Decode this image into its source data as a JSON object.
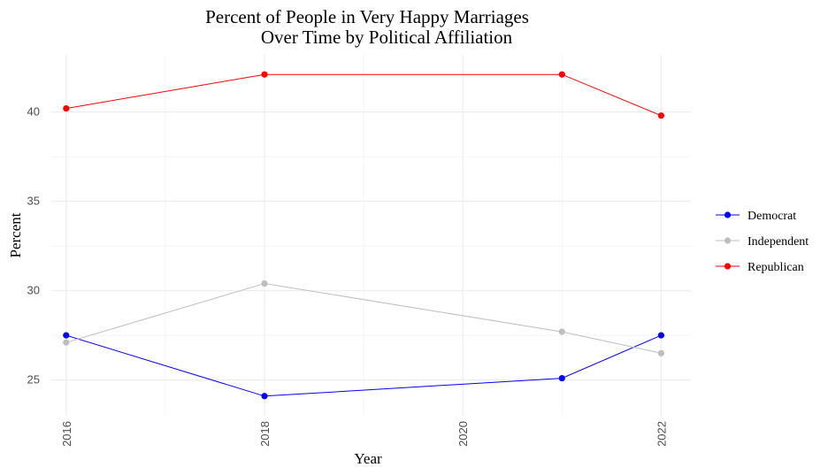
{
  "chart_data": {
    "type": "line",
    "title_lines": [
      "Percent of People in Very Happy Marriages",
      "Over Time by Political Affiliation"
    ],
    "xlabel": "Year",
    "ylabel": "Percent",
    "xlim": [
      2015.85,
      2022.3
    ],
    "ylim": [
      23.0,
      43.2
    ],
    "x_ticks": [
      2016,
      2018,
      2020,
      2022
    ],
    "y_ticks": [
      25,
      30,
      35,
      40
    ],
    "grid": true,
    "legend_position": "right",
    "series": [
      {
        "name": "Democrat",
        "color": "#0000ff",
        "x": [
          2016,
          2018,
          2021,
          2022
        ],
        "y": [
          27.5,
          24.1,
          25.1,
          27.5
        ]
      },
      {
        "name": "Independent",
        "color": "#bebebe",
        "x": [
          2016,
          2018,
          2021,
          2022
        ],
        "y": [
          27.1,
          30.4,
          27.7,
          26.5
        ]
      },
      {
        "name": "Republican",
        "color": "#ff0000",
        "x": [
          2016,
          2018,
          2021,
          2022
        ],
        "y": [
          40.2,
          42.1,
          42.1,
          39.8
        ]
      }
    ]
  }
}
